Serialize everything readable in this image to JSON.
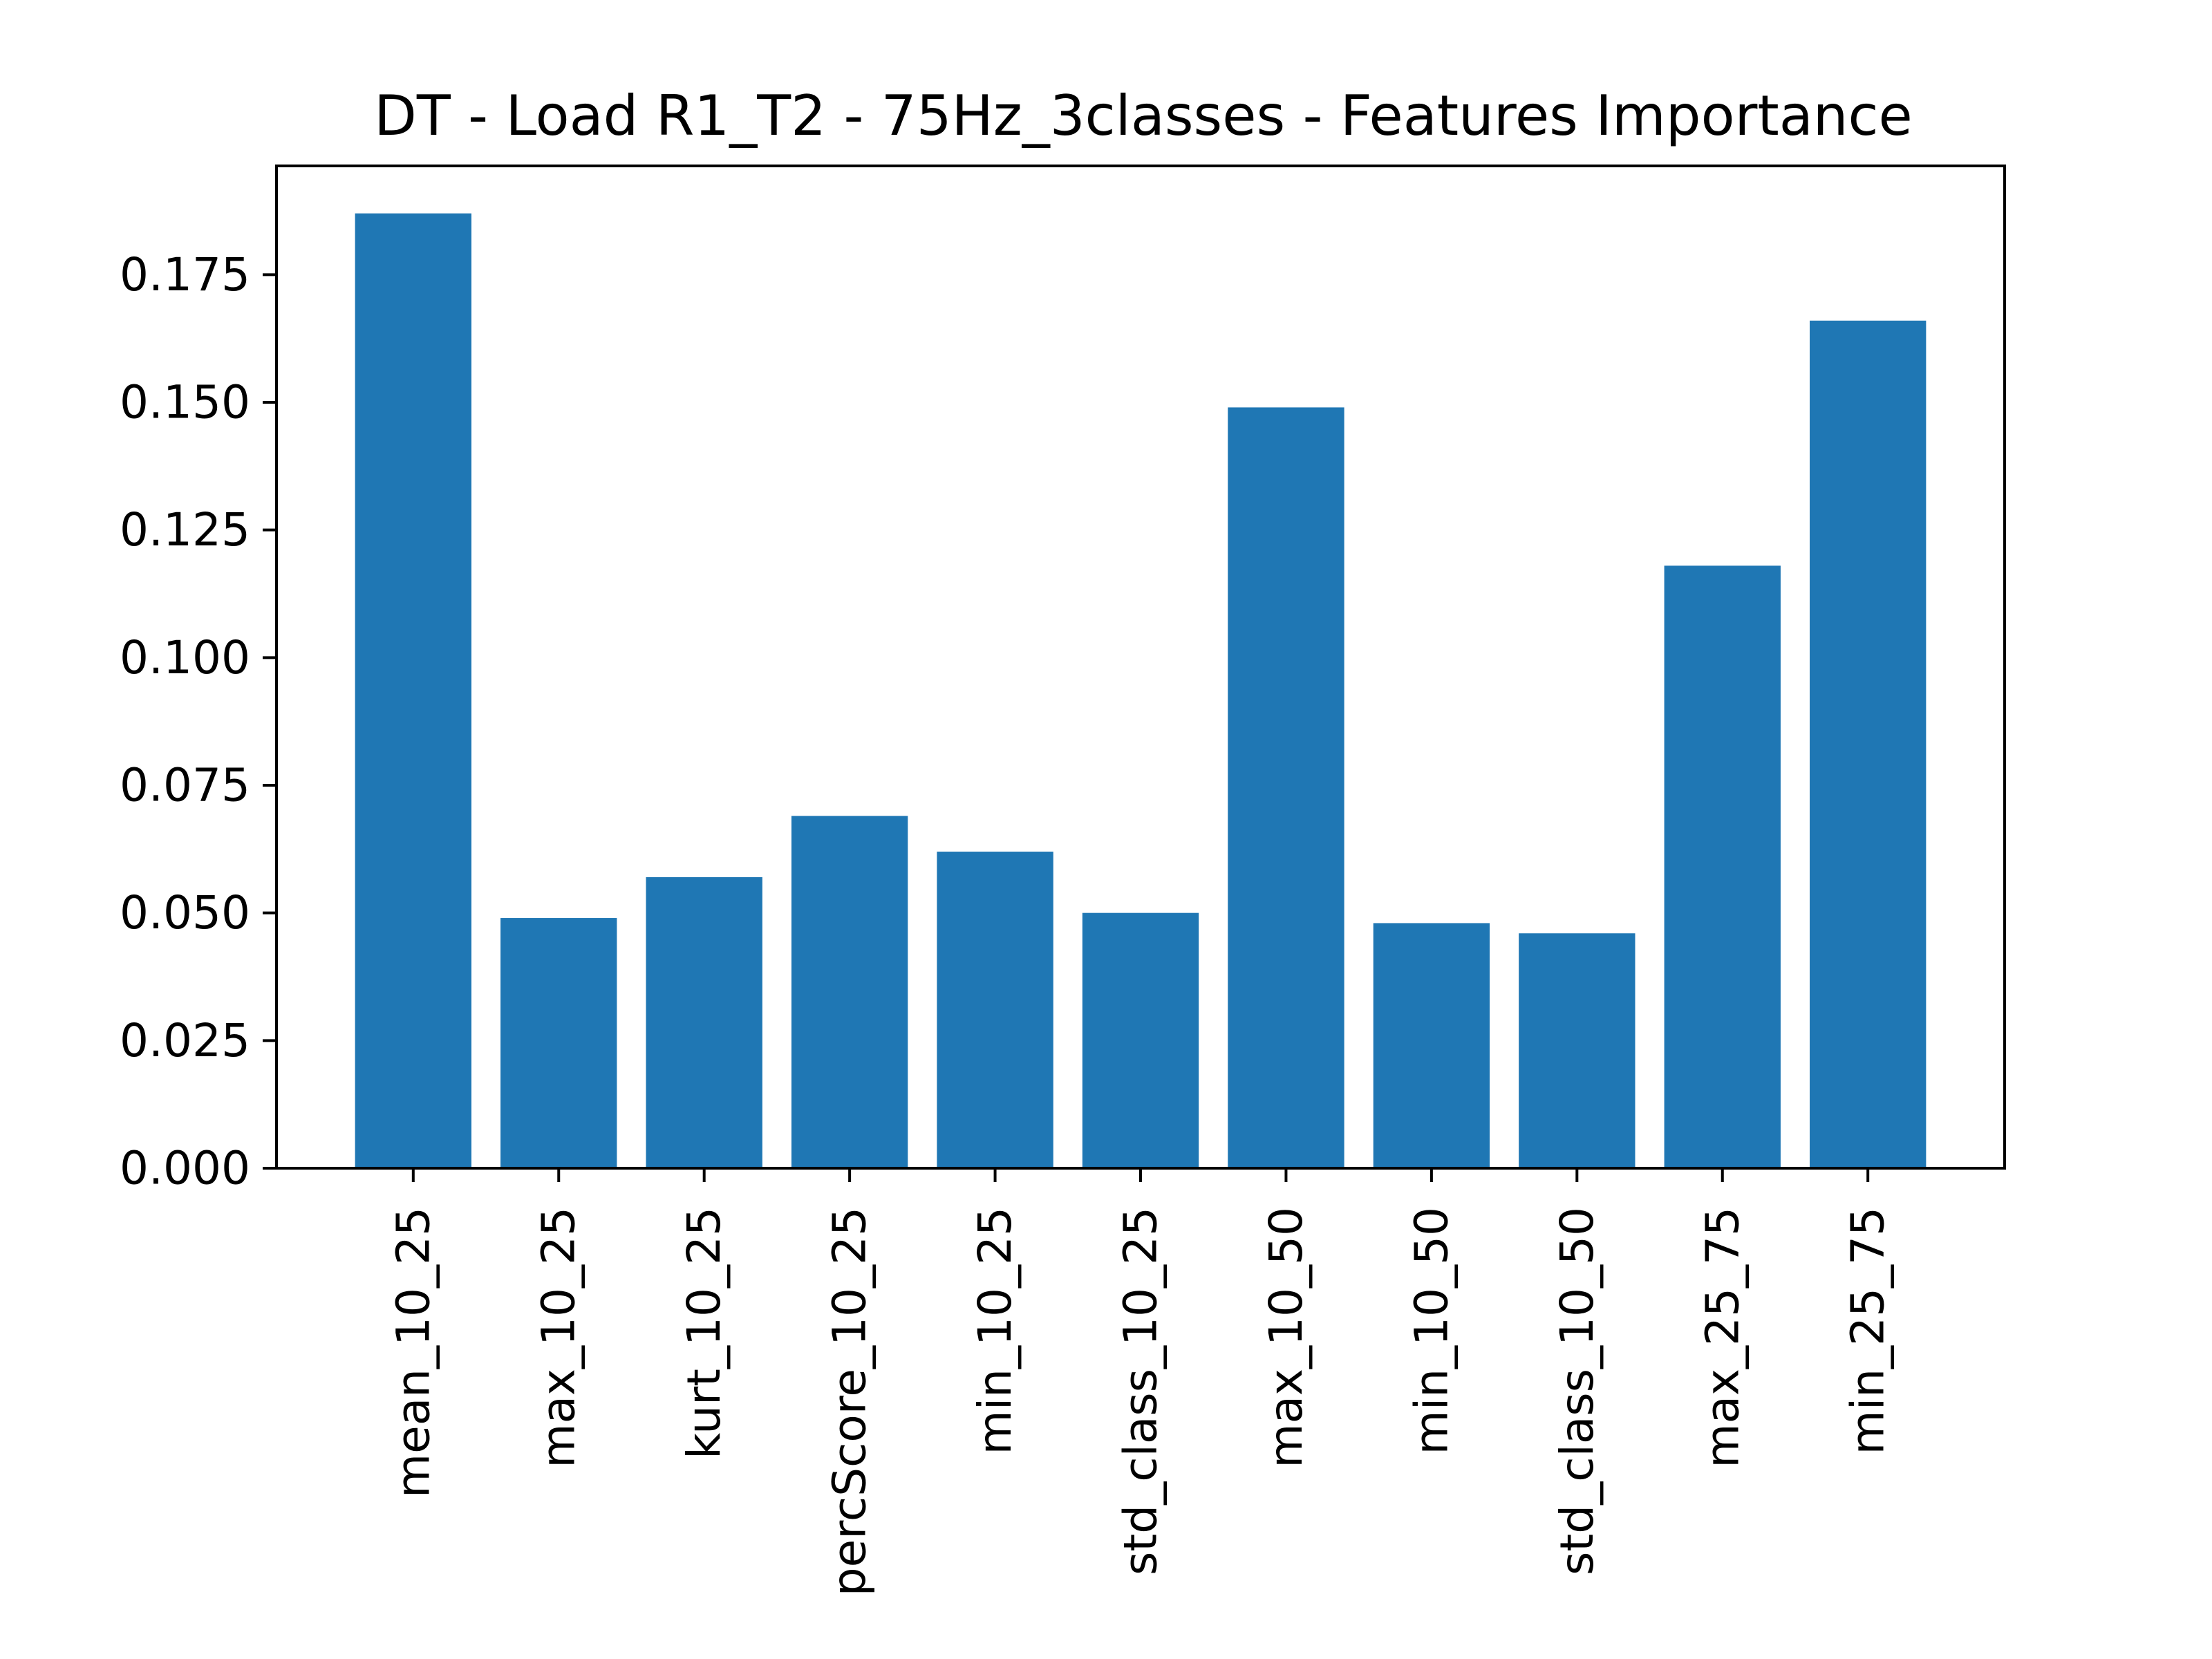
{
  "chart_data": {
    "type": "bar",
    "title": "DT - Load R1_T2 - 75Hz_3classes - Features Importance",
    "xlabel": "",
    "ylabel": "",
    "categories": [
      "mean_10_25",
      "max_10_25",
      "kurt_10_25",
      "percScore_10_25",
      "min_10_25",
      "std_class_10_25",
      "max_10_50",
      "min_10_50",
      "std_class_10_50",
      "max_25_75",
      "min_25_75"
    ],
    "values": [
      0.187,
      0.049,
      0.057,
      0.069,
      0.062,
      0.05,
      0.149,
      0.048,
      0.046,
      0.118,
      0.166
    ],
    "ylim": [
      0,
      0.1963
    ],
    "yticks": [
      0.0,
      0.025,
      0.05,
      0.075,
      0.1,
      0.125,
      0.15,
      0.175
    ],
    "ytick_labels": [
      "0.000",
      "0.025",
      "0.050",
      "0.075",
      "0.100",
      "0.125",
      "0.150",
      "0.175"
    ],
    "xtick_rotation": "vertical",
    "grid": false,
    "legend": "none",
    "bar_color": "#1f77b4"
  }
}
